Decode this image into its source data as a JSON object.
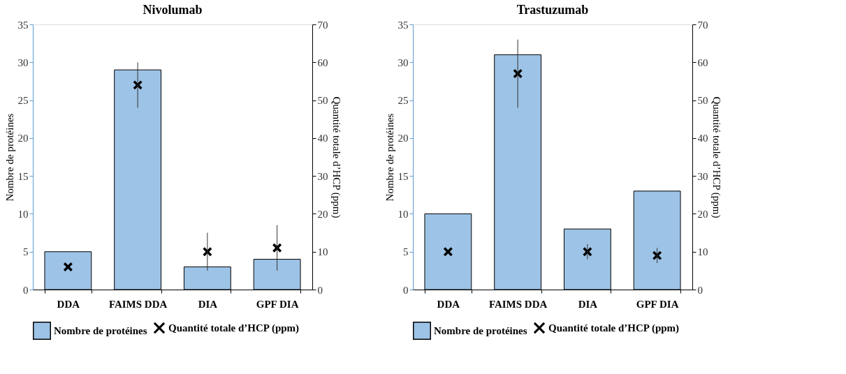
{
  "chart_data": [
    {
      "type": "bar",
      "title": "Nivolumab",
      "categories": [
        "DDA",
        "FAIMS DDA",
        "DIA",
        "GPF DIA"
      ],
      "ylabel": "Nombre de protéines",
      "y2label": "Quantité totale d’HCP (ppm)",
      "ylim": [
        0,
        35
      ],
      "yticks": [
        0,
        5,
        10,
        15,
        20,
        25,
        30,
        35
      ],
      "y2lim": [
        0,
        70
      ],
      "y2ticks": [
        0,
        10,
        20,
        30,
        40,
        50,
        60,
        70
      ],
      "grid": false,
      "legend": "bottom",
      "series": [
        {
          "name": "Nombre de protéines",
          "type": "bar",
          "color": "#9dc3e6",
          "values": [
            5,
            29,
            3,
            4
          ]
        },
        {
          "name": "Quantité totale d’HCP (ppm)",
          "type": "scatter",
          "axis": "y2",
          "marker": "cross",
          "color": "#000000",
          "values": [
            6,
            54,
            10,
            11
          ],
          "errors": [
            null,
            [
              48,
              60
            ],
            [
              5,
              15
            ],
            [
              5,
              17
            ]
          ]
        }
      ]
    },
    {
      "type": "bar",
      "title": "Trastuzumab",
      "categories": [
        "DDA",
        "FAIMS DDA",
        "DIA",
        "GPF DIA"
      ],
      "ylabel": "Nombre de protéines",
      "y2label": "Quantité totale d’HCP (ppm)",
      "ylim": [
        0,
        35
      ],
      "yticks": [
        0,
        5,
        10,
        15,
        20,
        25,
        30,
        35
      ],
      "y2lim": [
        0,
        70
      ],
      "y2ticks": [
        0,
        10,
        20,
        30,
        40,
        50,
        60,
        70
      ],
      "grid": false,
      "legend": "bottom",
      "series": [
        {
          "name": "Nombre de protéines",
          "type": "bar",
          "color": "#9dc3e6",
          "values": [
            10,
            31,
            8,
            13
          ]
        },
        {
          "name": "Quantité totale d’HCP (ppm)",
          "type": "scatter",
          "axis": "y2",
          "marker": "cross",
          "color": "#000000",
          "values": [
            10,
            57,
            10,
            9
          ],
          "errors": [
            null,
            [
              48,
              66
            ],
            [
              8,
              12
            ],
            [
              7,
              11
            ]
          ]
        }
      ]
    }
  ]
}
